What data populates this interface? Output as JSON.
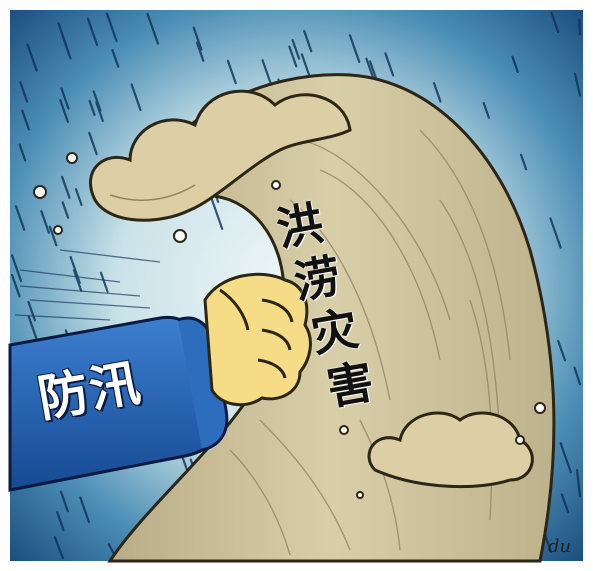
{
  "cartoon": {
    "wave_text": [
      "洪",
      "涝",
      "灾",
      "害"
    ],
    "sleeve_text": "防汛",
    "signature": "du"
  },
  "colors": {
    "sky_top": "#0f3f72",
    "sky_mid": "#2f6fa3",
    "glow": "#e9f3f6",
    "wave": "#cfc49e",
    "wave_dark": "#a89e77",
    "sleeve": "#1f5fae",
    "fist": "#f6dc86"
  },
  "icons": [
    "rain-streaks",
    "flood-wave",
    "fist",
    "foam-bubble"
  ]
}
